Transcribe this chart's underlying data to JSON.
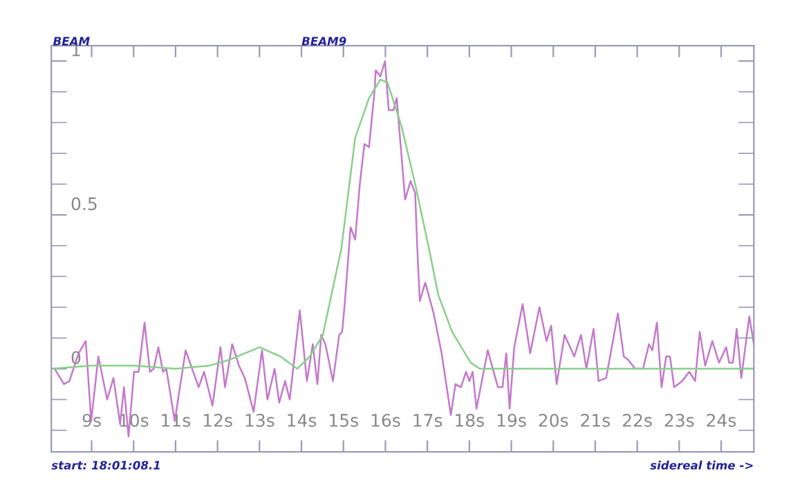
{
  "chart_data": {
    "type": "line",
    "annotations": [
      "BEAM",
      "BEAM9",
      "start: 18:01:08.1",
      "sidereal time ->"
    ],
    "xlim": [
      8.04,
      24.78
    ],
    "xticks": [
      {
        "value": 9,
        "label": "9s"
      },
      {
        "value": 10,
        "label": "10s"
      },
      {
        "value": 11,
        "label": "11s"
      },
      {
        "value": 12,
        "label": "12s"
      },
      {
        "value": 13,
        "label": "13s"
      },
      {
        "value": 14,
        "label": "14s"
      },
      {
        "value": 15,
        "label": "15s"
      },
      {
        "value": 16,
        "label": "16s"
      },
      {
        "value": 17,
        "label": "17s"
      },
      {
        "value": 18,
        "label": "18s"
      },
      {
        "value": 19,
        "label": "19s"
      },
      {
        "value": 20,
        "label": "20s"
      },
      {
        "value": 21,
        "label": "21s"
      },
      {
        "value": 22,
        "label": "22s"
      },
      {
        "value": 23,
        "label": "23s"
      },
      {
        "value": 24,
        "label": "24s"
      }
    ],
    "ylim": [
      -0.27,
      1.05
    ],
    "yticks": [
      {
        "value": -0.2,
        "label": null
      },
      {
        "value": -0.1,
        "label": null
      },
      0,
      {
        "value": 0.1,
        "label": null
      },
      {
        "value": 0.2,
        "label": null
      },
      {
        "value": 0.3,
        "label": null
      },
      {
        "value": 0.4,
        "label": null
      },
      0.5,
      {
        "value": 0.6,
        "label": null
      },
      {
        "value": 0.7,
        "label": null
      },
      {
        "value": 0.8,
        "label": null
      },
      {
        "value": 0.9,
        "label": null
      },
      1
    ],
    "grid": false,
    "legend": false,
    "marker": "none",
    "line_style": "solid",
    "series": [
      {
        "color": "#c478cc",
        "x": [
          8.12,
          8.34,
          8.47,
          8.69,
          8.86,
          8.99,
          9.16,
          9.37,
          9.52,
          9.68,
          9.77,
          9.88,
          10.01,
          10.12,
          10.26,
          10.39,
          10.48,
          10.59,
          10.7,
          10.78,
          10.98,
          11.24,
          11.55,
          11.68,
          11.88,
          12.07,
          12.18,
          12.35,
          12.51,
          12.65,
          12.86,
          13.06,
          13.19,
          13.36,
          13.47,
          13.61,
          13.72,
          13.96,
          14.13,
          14.27,
          14.38,
          14.47,
          14.57,
          14.75,
          14.9,
          14.97,
          15.03,
          15.17,
          15.28,
          15.39,
          15.5,
          15.61,
          15.74,
          15.77,
          15.88,
          15.99,
          16.08,
          16.19,
          16.27,
          16.47,
          16.6,
          16.71,
          16.76,
          16.82,
          16.95,
          17.15,
          17.34,
          17.56,
          17.67,
          17.8,
          17.92,
          18.0,
          18.08,
          18.17,
          18.44,
          18.68,
          18.79,
          18.88,
          18.96,
          19.07,
          19.27,
          19.45,
          19.67,
          19.84,
          19.95,
          20.08,
          20.27,
          20.5,
          20.66,
          20.79,
          20.96,
          21.08,
          21.26,
          21.54,
          21.68,
          21.78,
          21.95,
          22.14,
          22.28,
          22.36,
          22.47,
          22.58,
          22.69,
          22.78,
          22.88,
          23.07,
          23.24,
          23.38,
          23.49,
          23.62,
          23.79,
          23.95,
          24.12,
          24.19,
          24.28,
          24.37,
          24.48,
          24.67,
          24.78
        ],
        "values": [
          0.0,
          -0.05,
          -0.04,
          0.05,
          0.09,
          -0.17,
          0.04,
          -0.1,
          -0.03,
          -0.18,
          -0.06,
          -0.22,
          -0.01,
          -0.01,
          0.15,
          -0.01,
          0.0,
          0.07,
          -0.01,
          0.0,
          -0.17,
          0.06,
          -0.06,
          -0.01,
          -0.12,
          0.07,
          -0.06,
          0.08,
          0.01,
          -0.03,
          -0.14,
          0.06,
          -0.1,
          0.0,
          -0.11,
          -0.04,
          -0.1,
          0.19,
          -0.04,
          0.08,
          -0.05,
          0.11,
          0.08,
          -0.04,
          0.11,
          0.12,
          0.21,
          0.46,
          0.42,
          0.6,
          0.73,
          0.72,
          0.9,
          0.97,
          0.95,
          1.0,
          0.84,
          0.84,
          0.88,
          0.55,
          0.61,
          0.57,
          0.39,
          0.22,
          0.28,
          0.18,
          0.05,
          -0.15,
          -0.05,
          -0.06,
          -0.01,
          -0.04,
          -0.01,
          -0.13,
          0.06,
          -0.06,
          -0.06,
          0.05,
          -0.13,
          0.07,
          0.21,
          0.05,
          0.2,
          0.09,
          0.14,
          -0.05,
          0.11,
          0.04,
          0.11,
          0.0,
          0.13,
          -0.04,
          -0.03,
          0.18,
          0.04,
          0.03,
          0.0,
          0.0,
          0.08,
          0.06,
          0.15,
          -0.06,
          0.04,
          0.04,
          -0.06,
          -0.04,
          -0.01,
          -0.04,
          0.12,
          0.01,
          0.09,
          0.02,
          0.07,
          0.02,
          0.02,
          0.13,
          -0.03,
          0.17,
          0.08
        ]
      },
      {
        "color": "#88d088",
        "x": [
          8.05,
          9.0,
          10.0,
          11.0,
          11.8,
          12.3,
          13.0,
          13.5,
          13.9,
          14.2,
          14.51,
          14.95,
          15.28,
          15.61,
          15.88,
          16.05,
          16.38,
          16.71,
          17.04,
          17.26,
          17.59,
          18.03,
          18.25,
          24.78
        ],
        "values": [
          0.0,
          0.01,
          0.01,
          0.0,
          0.01,
          0.03,
          0.07,
          0.04,
          0.0,
          0.04,
          0.11,
          0.39,
          0.75,
          0.88,
          0.94,
          0.93,
          0.79,
          0.6,
          0.39,
          0.24,
          0.12,
          0.02,
          0.0,
          0.0
        ]
      }
    ]
  }
}
